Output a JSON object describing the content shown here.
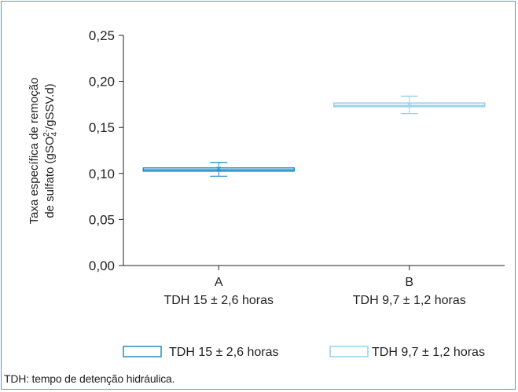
{
  "chart_data": {
    "type": "box",
    "ylabel_line1": "Taxa específica de remoção",
    "ylabel_line2_pre": "de sulfato (gSO",
    "ylabel_sub": "4",
    "ylabel_sup": "2-",
    "ylabel_line2_post": "/gSSV.d)",
    "ylim": [
      0,
      0.25
    ],
    "yticks": [
      {
        "value": 0.0,
        "label": "0,00"
      },
      {
        "value": 0.05,
        "label": "0,05"
      },
      {
        "value": 0.1,
        "label": "0,10"
      },
      {
        "value": 0.15,
        "label": "0,15"
      },
      {
        "value": 0.2,
        "label": "0,20"
      },
      {
        "value": 0.25,
        "label": "0,25"
      }
    ],
    "categories": [
      {
        "label": "A",
        "sublabel": "TDH 15 ± 2,6 horas"
      },
      {
        "label": "B",
        "sublabel": "TDH 9,7 ± 1,2 horas"
      }
    ],
    "series": [
      {
        "name": "TDH 15 ± 2,6 horas",
        "color": "#1d8fc6",
        "q1": 0.1025,
        "median": 0.104,
        "q3": 0.106,
        "min": 0.097,
        "max": 0.112,
        "mean": 0.105
      },
      {
        "name": "TDH 9,7 ± 1,2 horas",
        "color": "#9ccfe9",
        "q1": 0.1725,
        "median": 0.174,
        "q3": 0.1765,
        "min": 0.165,
        "max": 0.184,
        "mean": 0.175
      }
    ]
  },
  "footnote": "TDH: tempo de detenção hidráulica."
}
